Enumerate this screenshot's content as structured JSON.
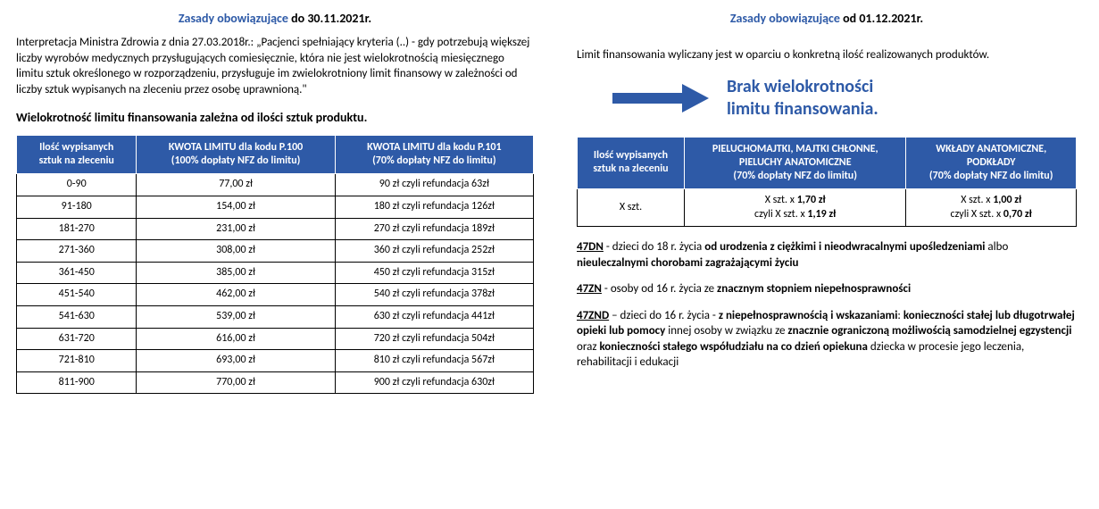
{
  "left": {
    "title_blue": "Zasady obowiązujące",
    "title_black": " do 30.11.2021r.",
    "intro": "Interpretacja Ministra Zdrowia z dnia 27.03.2018r.: „Pacjenci spełniający kryteria (..) - gdy potrzebują większej liczby wyrobów medycznych przysługujących comiesięcznie, która nie jest wielokrotnością miesięcznego limitu sztuk określonego w rozporządzeniu, przysługuje im zwielokrotniony limit finansowy w zależności od liczby sztuk wypisanych na zleceniu przez osobę uprawnioną.\"",
    "sub": "Wielokrotność limitu finansowania zależna od ilości sztuk produktu.",
    "headers": {
      "c1a": "Ilość wypisanych",
      "c1b": "sztuk na zleceniu",
      "c2a": "KWOTA LIMITU dla kodu P.100",
      "c2b": "(100% dopłaty NFZ do limitu)",
      "c3a": "KWOTA LIMITU dla kodu P.101",
      "c3b": "(70% dopłaty NFZ do limitu)"
    },
    "rows": [
      {
        "r": "0-90",
        "a": "77,00 zł",
        "b": "90 zł czyli refundacja 63zł"
      },
      {
        "r": "91-180",
        "a": "154,00 zł",
        "b": "180 zł czyli refundacja 126zł"
      },
      {
        "r": "181-270",
        "a": "231,00 zł",
        "b": "270 zł czyli refundacja 189zł"
      },
      {
        "r": "271-360",
        "a": "308,00 zł",
        "b": "360 zł czyli refundacja 252zł"
      },
      {
        "r": "361-450",
        "a": "385,00 zł",
        "b": "450 zł czyli refundacja 315zł"
      },
      {
        "r": "451-540",
        "a": "462,00 zł",
        "b": "540 zł czyli refundacja 378zł"
      },
      {
        "r": "541-630",
        "a": "539,00 zł",
        "b": "630 zł czyli refundacja 441zł"
      },
      {
        "r": "631-720",
        "a": "616,00 zł",
        "b": "720 zł czyli refundacja 504zł"
      },
      {
        "r": "721-810",
        "a": "693,00 zł",
        "b": "810 zł czyli refundacja 567zł"
      },
      {
        "r": "811-900",
        "a": "770,00 zł",
        "b": "900 zł czyli refundacja 630zł"
      }
    ]
  },
  "right": {
    "title_blue": "Zasady obowiązujące",
    "title_black": " od 01.12.2021r.",
    "intro": "Limit finansowania wyliczany jest w oparciu o konkretną ilość realizowanych produktów.",
    "callout1": "Brak wielokrotności",
    "callout2": "limitu finansowania.",
    "headers": {
      "c1a": "Ilość wypisanych",
      "c1b": "sztuk na zleceniu",
      "c2a": "PIELUCHOMAJTKI, MAJTKI CHŁONNE,",
      "c2b": "PIELUCHY ANATOMICZNE",
      "c2c": "(70% dopłaty NFZ do limitu)",
      "c3a": "WKŁADY ANATOMICZNE,",
      "c3b": "PODKŁADY",
      "c3c": "(70% dopłaty NFZ do limitu)"
    },
    "row": {
      "c1": "X szt.",
      "c2_l1_pre": "X szt. x ",
      "c2_l1_b": "1,70 zł",
      "c2_l2_pre": "czyli X szt. x ",
      "c2_l2_b": "1,19 zł",
      "c3_l1_pre": "X szt. x ",
      "c3_l1_b": "1,00 zł",
      "c3_l2_pre": "czyli X szt. x ",
      "c3_l2_b": "0,70 zł"
    },
    "notes": {
      "n1_code": "47DN",
      "n1_a": " - dzieci do 18 r. życia ",
      "n1_b1": "od urodzenia z ciężkimi i nieodwracalnymi  upośledzeniami",
      "n1_c": " albo ",
      "n1_b2": "nieuleczalnymi chorobami zagrażającymi życiu",
      "n2_code": "47ZN",
      "n2_a": " - osoby od 16 r. życia ze ",
      "n2_b": "znacznym stopniem niepełnosprawności",
      "n3_code": "47ZND",
      "n3_a": " – dzieci do 16 r. życia -  ",
      "n3_b1": "z niepełnosprawnością i wskazaniami",
      "n3_c": ": ",
      "n3_b2": "konieczności stałej lub długotrwałej opieki lub pomocy",
      "n3_d": " innej osoby w związku ze ",
      "n3_b3": "znacznie ograniczoną możliwością samodzielnej egzystencji",
      "n3_e": " oraz ",
      "n3_b4": "konieczności stałego współudziału na co dzień opiekuna",
      "n3_f": " dziecka w procesie jego leczenia, rehabilitacji i edukacji"
    },
    "arrow_color": "#2e5aa7"
  }
}
